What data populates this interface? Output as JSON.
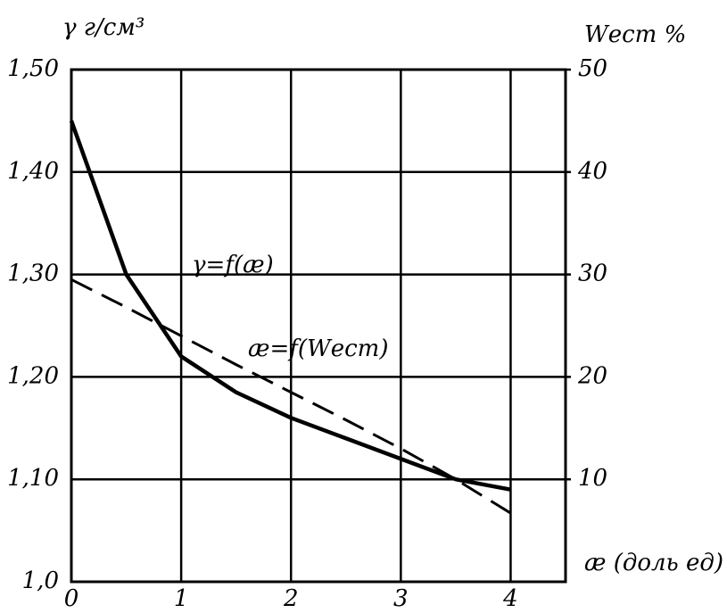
{
  "chart_data": {
    "type": "line",
    "ylabel": "γ г/см³",
    "y2label": "Wест %",
    "xlabel": "æ (доль ед)",
    "annotations": [
      "γ=f(æ)",
      "æ=f(Wест)"
    ],
    "x": [
      0,
      0.5,
      1,
      1.5,
      2,
      2.5,
      3,
      3.5,
      4
    ],
    "series": [
      {
        "name": "γ=f(æ)",
        "color": "#000000",
        "linestyle": "solid",
        "values": [
          1.45,
          1.3,
          1.22,
          1.185,
          1.16,
          1.14,
          1.12,
          1.1,
          1.09
        ]
      },
      {
        "name": "æ=f(Wест)",
        "color": "#000000",
        "linestyle": "dashed",
        "axis": "y2",
        "values": [
          29.5,
          26.8,
          24,
          21.2,
          18.5,
          15.8,
          13,
          10,
          6.7
        ]
      }
    ],
    "xlim": [
      0,
      4.5
    ],
    "xticks": [
      0,
      1,
      2,
      3,
      4
    ],
    "ylim": [
      1.0,
      1.5
    ],
    "yticks": [
      {
        "value": 1.0,
        "label": "1,0"
      },
      {
        "value": 1.1,
        "label": "1,10"
      },
      {
        "value": 1.2,
        "label": "1,20"
      },
      {
        "value": 1.3,
        "label": "1,30"
      },
      {
        "value": 1.4,
        "label": "1,40"
      },
      {
        "value": 1.5,
        "label": "1,50"
      }
    ],
    "y2lim": [
      0,
      50
    ],
    "y2ticks": [
      10,
      20,
      30,
      40,
      50
    ],
    "grid": true
  }
}
